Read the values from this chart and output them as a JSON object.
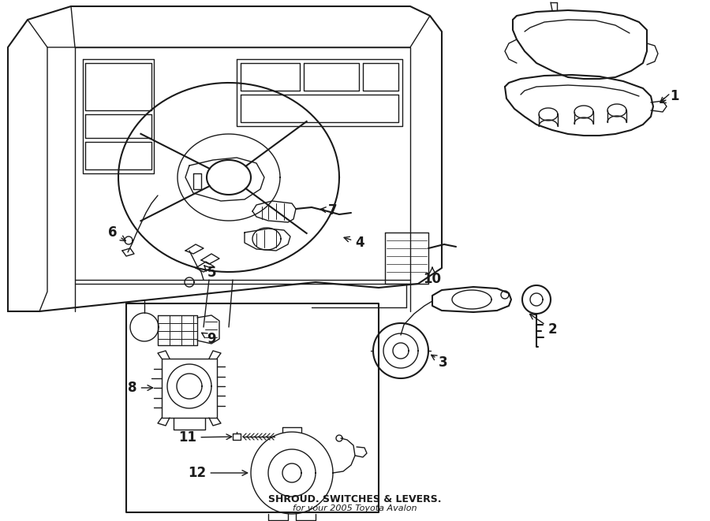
{
  "title": "SHROUD. SWITCHES & LEVERS.",
  "subtitle": "for your 2005 Toyota Avalon",
  "bg": "#ffffff",
  "lc": "#1a1a1a",
  "fig_w": 9.0,
  "fig_h": 6.61,
  "dpi": 100,
  "label_positions": {
    "1": [
      0.862,
      0.845,
      0.838,
      0.83
    ],
    "2": [
      0.695,
      0.428,
      0.668,
      0.44
    ],
    "3": [
      0.563,
      0.37,
      0.54,
      0.386
    ],
    "4": [
      0.453,
      0.622,
      0.428,
      0.632
    ],
    "5": [
      0.272,
      0.558,
      0.282,
      0.572
    ],
    "6": [
      0.148,
      0.658,
      0.168,
      0.67
    ],
    "7": [
      0.422,
      0.718,
      0.402,
      0.708
    ],
    "8": [
      0.188,
      0.432,
      0.228,
      0.44
    ],
    "9": [
      0.29,
      0.472,
      0.266,
      0.462
    ],
    "10": [
      0.548,
      0.498,
      0.548,
      0.512
    ],
    "11": [
      0.282,
      0.308,
      0.308,
      0.312
    ],
    "12": [
      0.308,
      0.248,
      0.335,
      0.252
    ]
  }
}
